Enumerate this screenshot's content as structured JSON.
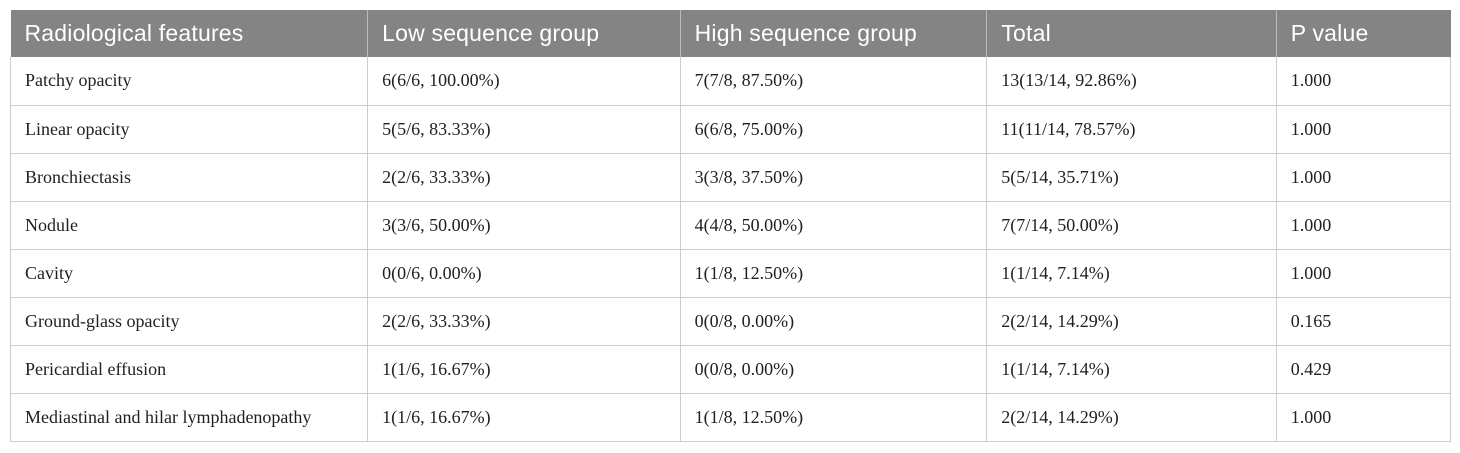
{
  "table": {
    "columns": [
      "Radiological features",
      "Low sequence group",
      "High sequence group",
      "Total",
      "P value"
    ],
    "rows": [
      {
        "feature": "Patchy opacity",
        "low": "6(6/6, 100.00%)",
        "high": "7(7/8, 87.50%)",
        "total": "13(13/14, 92.86%)",
        "p": "1.000"
      },
      {
        "feature": "Linear opacity",
        "low": "5(5/6, 83.33%)",
        "high": "6(6/8, 75.00%)",
        "total": "11(11/14, 78.57%)",
        "p": "1.000"
      },
      {
        "feature": "Bronchiectasis",
        "low": "2(2/6, 33.33%)",
        "high": "3(3/8, 37.50%)",
        "total": "5(5/14, 35.71%)",
        "p": "1.000"
      },
      {
        "feature": "Nodule",
        "low": "3(3/6, 50.00%)",
        "high": "4(4/8, 50.00%)",
        "total": "7(7/14, 50.00%)",
        "p": "1.000"
      },
      {
        "feature": "Cavity",
        "low": "0(0/6, 0.00%)",
        "high": "1(1/8, 12.50%)",
        "total": "1(1/14, 7.14%)",
        "p": "1.000"
      },
      {
        "feature": "Ground-glass opacity",
        "low": "2(2/6, 33.33%)",
        "high": "0(0/8, 0.00%)",
        "total": "2(2/14, 14.29%)",
        "p": "0.165"
      },
      {
        "feature": "Pericardial effusion",
        "low": "1(1/6, 16.67%)",
        "high": "0(0/8, 0.00%)",
        "total": "1(1/14, 7.14%)",
        "p": "0.429"
      },
      {
        "feature": "Mediastinal and hilar lymphadenopathy",
        "low": "1(1/6, 16.67%)",
        "high": "1(1/8, 12.50%)",
        "total": "2(2/14, 14.29%)",
        "p": "1.000"
      }
    ]
  },
  "colors": {
    "header_bg": "#848484",
    "header_text": "#ffffff",
    "body_text": "#1f1f1f",
    "border": "#cccccc"
  }
}
